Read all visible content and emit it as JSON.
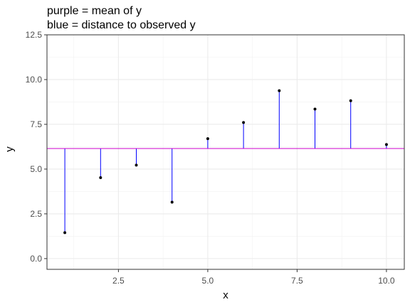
{
  "chart_data": {
    "type": "scatter",
    "title_lines": [
      "purple = mean of y",
      "blue = distance to observed y"
    ],
    "xlabel": "x",
    "ylabel": "y",
    "xlim": [
      0.5,
      10.5
    ],
    "ylim": [
      -0.6,
      12.5
    ],
    "x_ticks": [
      2.5,
      5.0,
      7.5,
      10.0
    ],
    "x_tick_labels": [
      "2.5",
      "5.0",
      "7.5",
      "10.0"
    ],
    "y_ticks": [
      0.0,
      2.5,
      5.0,
      7.5,
      10.0,
      12.5
    ],
    "y_tick_labels": [
      "0.0",
      "2.5",
      "5.0",
      "7.5",
      "10.0",
      "12.5"
    ],
    "grid": true,
    "mean_y": 6.15,
    "points": {
      "x": [
        1,
        2,
        3,
        4,
        5,
        6,
        7,
        8,
        9,
        10
      ],
      "y": [
        1.45,
        4.52,
        5.22,
        3.15,
        6.7,
        7.6,
        9.38,
        8.35,
        8.82,
        6.37
      ]
    },
    "colors": {
      "mean_line": "#cc00cc",
      "residual": "#0000ff",
      "point": "#000000"
    }
  }
}
